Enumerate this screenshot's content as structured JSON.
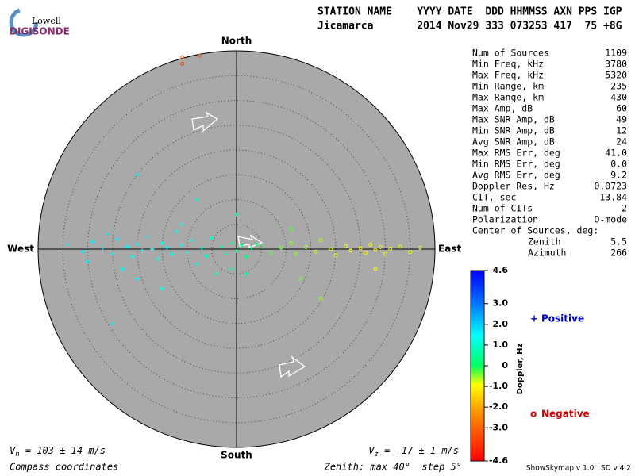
{
  "logo": {
    "brand": "Lowell",
    "product": "DIGISONDE"
  },
  "header": {
    "labels": "STATION NAME    YYYY DATE  DDD HHMMSS AXN PPS IGP",
    "values": "Jicamarca       2014 Nov29 333 073253 417  75 +8G"
  },
  "stats": [
    [
      "Num of Sources",
      "1109"
    ],
    [
      "Min Freq, kHz",
      "3780"
    ],
    [
      "Max Freq, kHz",
      "5320"
    ],
    [
      "Min Range, km",
      "235"
    ],
    [
      "Max Range, km",
      "430"
    ],
    [
      "Max Amp, dB",
      "60"
    ],
    [
      "Max SNR Amp, dB",
      "49"
    ],
    [
      "Min SNR Amp, dB",
      "12"
    ],
    [
      "Avg SNR Amp, dB",
      "24"
    ],
    [
      "Max RMS Err, deg",
      "41.0"
    ],
    [
      "Min RMS Err, deg",
      "0.0"
    ],
    [
      "Avg RMS Err, deg",
      "9.2"
    ],
    [
      "Doppler Res, Hz",
      "0.0723"
    ],
    [
      "CIT, sec",
      "13.84"
    ],
    [
      "Num of CITs",
      "2"
    ],
    [
      "Polarization",
      "O-mode"
    ]
  ],
  "center": {
    "title": "Center of Sources, deg:",
    "rows": [
      [
        "Zenith",
        "5.5"
      ],
      [
        "Azimuth",
        "266"
      ]
    ]
  },
  "compass": {
    "north": "North",
    "south": "South",
    "west": "West",
    "east": "East"
  },
  "skymap": {
    "zenith_max": 40,
    "zenith_step": 5,
    "sources": [
      [
        -34,
        1,
        1.6
      ],
      [
        -31,
        -0.5,
        1.5
      ],
      [
        -29,
        1.5,
        1.6
      ],
      [
        -27,
        0.2,
        1.5
      ],
      [
        -25,
        -1,
        1.4
      ],
      [
        -24,
        2,
        1.6
      ],
      [
        -22,
        0.5,
        1.5
      ],
      [
        -21,
        -1.5,
        1.3
      ],
      [
        -20,
        1,
        1.5
      ],
      [
        -19,
        -0.3,
        1.4
      ],
      [
        -18,
        2.5,
        1.6
      ],
      [
        -17,
        0,
        1.4
      ],
      [
        -16,
        -2,
        1.3
      ],
      [
        -15,
        1.2,
        1.5
      ],
      [
        -14,
        0.3,
        1.4
      ],
      [
        -13,
        -1,
        1.3
      ],
      [
        -12,
        3.5,
        1.5
      ],
      [
        -11,
        0.8,
        1.4
      ],
      [
        -10,
        -0.6,
        1.3
      ],
      [
        -9,
        1.8,
        1.2
      ],
      [
        -8,
        -3,
        1.2
      ],
      [
        -7,
        0.2,
        1.1
      ],
      [
        -6,
        -1.4,
        1.0
      ],
      [
        -5,
        2.2,
        1.0
      ],
      [
        -23,
        -4,
        1.5
      ],
      [
        -26,
        3,
        1.7
      ],
      [
        -30,
        -2.5,
        1.6
      ],
      [
        -20,
        -6,
        1.5
      ],
      [
        -15,
        -8,
        1.4
      ],
      [
        -11,
        5,
        1.3
      ],
      [
        -4,
        -5,
        0.8
      ],
      [
        -20,
        15,
        1.5
      ],
      [
        -25,
        -15,
        1.6
      ],
      [
        -8,
        10,
        1.0
      ],
      [
        -3,
        0.5,
        0.6
      ],
      [
        -2,
        -1,
        0.5
      ],
      [
        -1,
        1.2,
        0.4
      ],
      [
        0,
        -0.4,
        0.3
      ],
      [
        1,
        0.8,
        0.4
      ],
      [
        2,
        -1.5,
        0.3
      ],
      [
        3,
        0.2,
        0.2
      ],
      [
        4,
        1,
        0.3
      ],
      [
        2,
        -5,
        0.5
      ],
      [
        -1,
        -4,
        0.6
      ],
      [
        0,
        7,
        0.5
      ],
      [
        5,
        0.5,
        -0.2
      ],
      [
        7,
        -0.8,
        -0.3
      ],
      [
        9,
        0.3,
        -0.4
      ],
      [
        11,
        1.2,
        -0.5
      ],
      [
        12,
        -1,
        -0.5
      ],
      [
        14,
        0.4,
        -0.6
      ],
      [
        16,
        -0.5,
        -0.7
      ],
      [
        17,
        1.8,
        -0.6
      ],
      [
        19,
        0,
        -0.8
      ],
      [
        20,
        -1.2,
        -0.8
      ],
      [
        22,
        0.6,
        -0.9
      ],
      [
        23,
        -0.3,
        -0.9
      ],
      [
        25,
        0.2,
        -1.0
      ],
      [
        26,
        -0.8,
        -1.0
      ],
      [
        27,
        0.9,
        -0.9
      ],
      [
        28,
        -0.2,
        -1.0
      ],
      [
        29,
        0.4,
        -1.0
      ],
      [
        30,
        -1,
        -0.9
      ],
      [
        31,
        0.1,
        -0.9
      ],
      [
        33,
        0.5,
        -0.8
      ],
      [
        35,
        -0.6,
        -0.8
      ],
      [
        37,
        0.3,
        -0.7
      ],
      [
        13,
        -6,
        -0.4
      ],
      [
        17,
        -10,
        -0.5
      ],
      [
        28,
        -4,
        -0.9
      ],
      [
        11,
        4,
        -0.3
      ],
      [
        -10.9,
        38.7,
        -3.5
      ],
      [
        -7.4,
        39,
        -3.3
      ],
      [
        -10.9,
        37.4,
        -3.6
      ]
    ]
  },
  "colorbar": {
    "title": "Doppler, Hz",
    "lim": [
      -4.6,
      4.6
    ],
    "ticks": [
      4.6,
      {
        "value": 3,
        "label": "3.0"
      },
      {
        "value": 2,
        "label": "2.0"
      },
      {
        "value": 1,
        "label": "1.0"
      },
      0,
      {
        "value": -1,
        "label": "-1.0"
      },
      {
        "value": -2,
        "label": "-2.0"
      },
      {
        "value": -3,
        "label": "-3.0"
      },
      -4.6
    ]
  },
  "legend": {
    "positive": {
      "marker": "+",
      "label": "Positive"
    },
    "negative": {
      "marker": "o",
      "label": "Negative"
    }
  },
  "velocity": {
    "vh": {
      "symbol": "V",
      "sub": "h",
      "text": " = 103 ± 14 m/s"
    },
    "vz": {
      "symbol": "V",
      "sub": "z",
      "text": " = -17 ± 1 m/s"
    }
  },
  "footer": {
    "coords": "Compass coordinates",
    "zenith": "Zenith: max 40°  step 5°",
    "version": "ShowSkymap v 1.0   SD v 4.2"
  }
}
